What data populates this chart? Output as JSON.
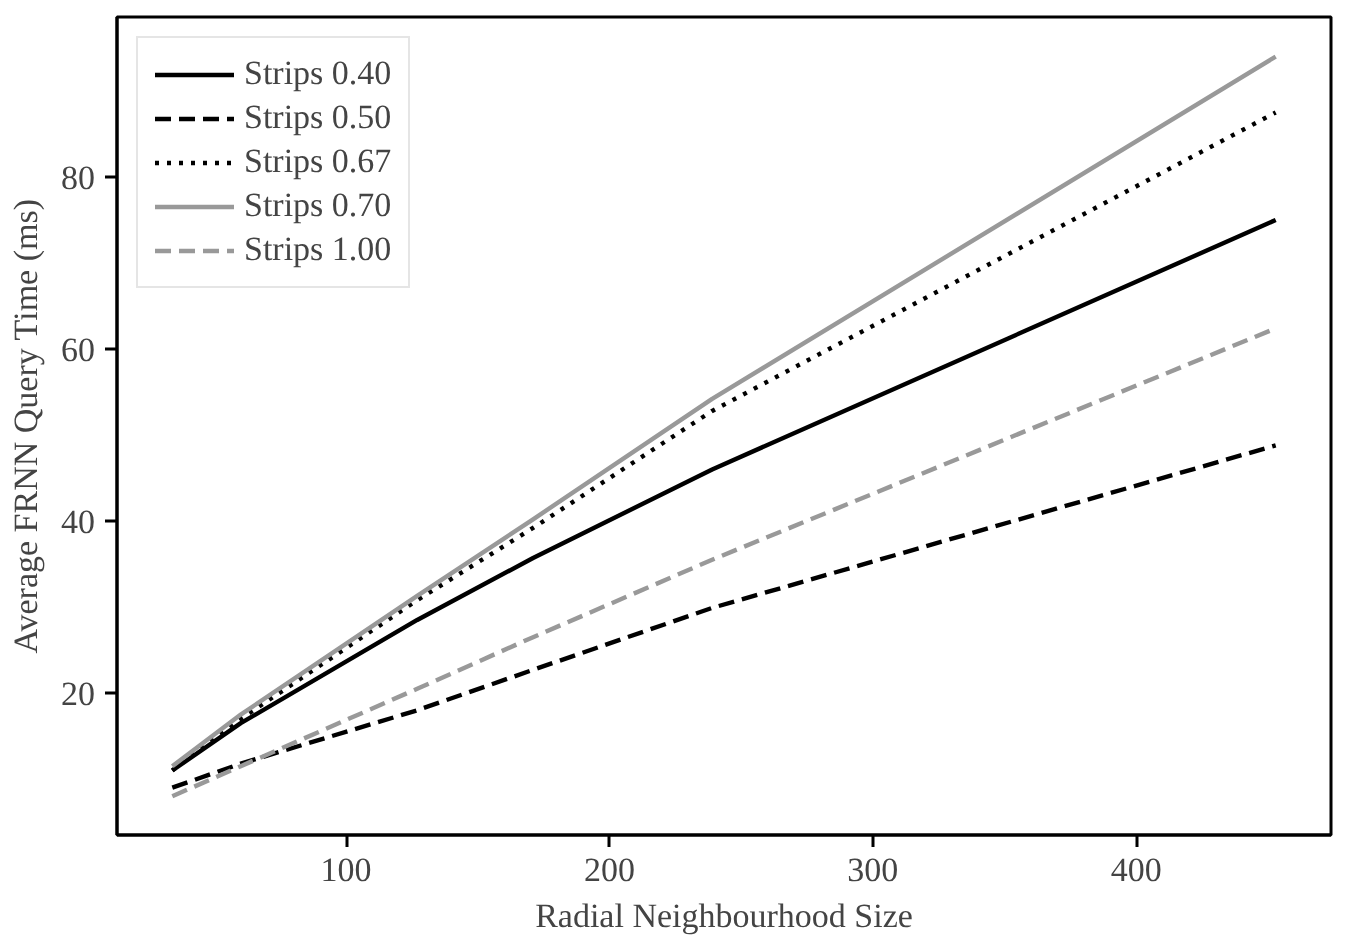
{
  "chart_data": {
    "type": "line",
    "xlabel": "Radial Neighbourhood Size",
    "ylabel": "Average FRNN Query Time (ms)",
    "x": [
      34,
      60,
      127,
      171,
      239,
      453
    ],
    "series": [
      {
        "name": "Strips 0.40",
        "color": "#000000",
        "line_style": "solid",
        "values": [
          11,
          16.5,
          28.5,
          35.7,
          46.0,
          75.0
        ]
      },
      {
        "name": "Strips 0.50",
        "color": "#000000",
        "line_style": "dashed",
        "values": [
          9,
          11.8,
          18,
          22.7,
          29.9,
          48.8
        ]
      },
      {
        "name": "Strips 0.67",
        "color": "#000000",
        "line_style": "dotted",
        "values": [
          11,
          17,
          30.8,
          39.2,
          52.8,
          87.5
        ]
      },
      {
        "name": "Strips 0.70",
        "color": "#999999",
        "line_style": "solid",
        "values": [
          11.5,
          17.5,
          31.3,
          40.2,
          54.2,
          94.0
        ]
      },
      {
        "name": "Strips 1.00",
        "color": "#999999",
        "line_style": "dashed",
        "values": [
          8,
          11.5,
          20.5,
          26.5,
          35.5,
          62.4
        ]
      }
    ],
    "xlim": [
      13,
      474
    ],
    "ylim": [
      3.5,
      98.6
    ],
    "xticks": [
      100,
      200,
      300,
      400
    ],
    "yticks": [
      20,
      40,
      60,
      80
    ],
    "grid": false,
    "legend": "top left",
    "marker": "none"
  }
}
